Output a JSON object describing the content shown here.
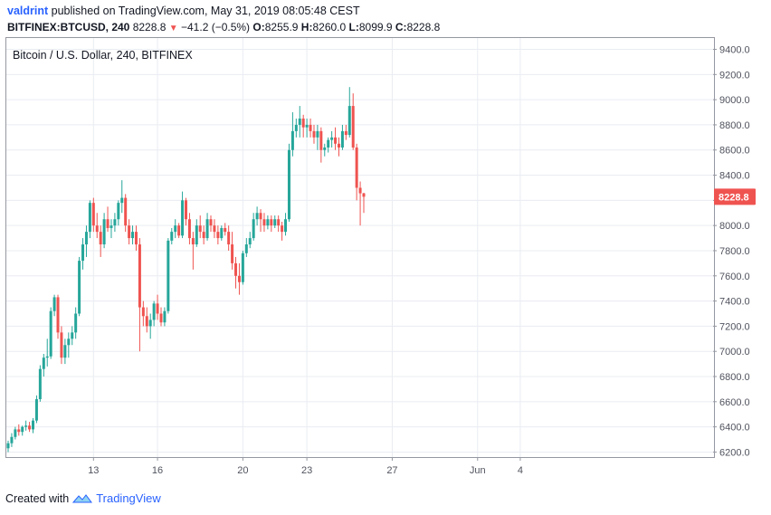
{
  "header": {
    "author": "valdrint",
    "published_text": "published on TradingView.com, May 31, 2019 08:05:48 CEST",
    "symbol": "BITFINEX:BTCUSD, 240",
    "last": "8228.8",
    "change": "−41.2 (−0.5%)",
    "o_label": "O:",
    "o_value": "8255.9",
    "h_label": "H:",
    "h_value": "8260.0",
    "l_label": "L:",
    "l_value": "8099.9",
    "c_label": "C:",
    "c_value": "8228.8"
  },
  "footer": {
    "created_with": "Created with",
    "brand": "TradingView"
  },
  "colors": {
    "up": "#26a69a",
    "down": "#ef5350",
    "grid": "#e9ecf2",
    "axis_text": "#50535e"
  },
  "chart_data": {
    "type": "candlestick",
    "title": "Bitcoin / U.S. Dollar, 240, BITFINEX",
    "ylim": [
      6160,
      9490
    ],
    "y_ticks": [
      6200,
      6400,
      6600,
      6800,
      7000,
      7200,
      7400,
      7600,
      7800,
      8000,
      8200,
      8400,
      8600,
      8800,
      9000,
      9200,
      9400
    ],
    "y_tick_labels": [
      "6200.0",
      "6400.0",
      "6600.0",
      "6800.0",
      "7000.0",
      "7200.0",
      "7400.0",
      "7600.0",
      "7800.0",
      "8000.0",
      "8200.0",
      "8400.0",
      "8600.0",
      "8800.0",
      "9000.0",
      "9200.0",
      "9400.0"
    ],
    "x_ticks": [
      {
        "label": "13",
        "index": 24
      },
      {
        "label": "16",
        "index": 42
      },
      {
        "label": "20",
        "index": 66
      },
      {
        "label": "23",
        "index": 84
      },
      {
        "label": "27",
        "index": 108
      },
      {
        "label": "Jun",
        "index": 132
      },
      {
        "label": "4",
        "index": 144
      }
    ],
    "last_price": 8228.8,
    "last_price_label": "8228.8",
    "candles": [
      [
        6230,
        6290,
        6200,
        6270
      ],
      [
        6270,
        6350,
        6240,
        6320
      ],
      [
        6320,
        6400,
        6300,
        6380
      ],
      [
        6380,
        6420,
        6330,
        6360
      ],
      [
        6360,
        6410,
        6330,
        6400
      ],
      [
        6400,
        6450,
        6370,
        6410
      ],
      [
        6410,
        6440,
        6360,
        6380
      ],
      [
        6380,
        6470,
        6350,
        6450
      ],
      [
        6450,
        6650,
        6430,
        6620
      ],
      [
        6620,
        6890,
        6600,
        6860
      ],
      [
        6860,
        6980,
        6800,
        6950
      ],
      [
        6950,
        7100,
        6880,
        6960
      ],
      [
        6960,
        7350,
        6940,
        7320
      ],
      [
        7320,
        7450,
        7280,
        7430
      ],
      [
        7430,
        7450,
        7100,
        7150
      ],
      [
        7150,
        7200,
        6900,
        6950
      ],
      [
        6950,
        7100,
        6900,
        7050
      ],
      [
        7050,
        7150,
        6950,
        7100
      ],
      [
        7100,
        7200,
        7050,
        7150
      ],
      [
        7150,
        7350,
        7100,
        7300
      ],
      [
        7300,
        7750,
        7280,
        7720
      ],
      [
        7720,
        7900,
        7650,
        7850
      ],
      [
        7850,
        8000,
        7750,
        7950
      ],
      [
        7950,
        8200,
        7900,
        8180
      ],
      [
        8180,
        8220,
        7950,
        8000
      ],
      [
        8000,
        8100,
        7900,
        7950
      ],
      [
        7950,
        8000,
        7750,
        7850
      ],
      [
        7850,
        8100,
        7820,
        8050
      ],
      [
        8050,
        8150,
        7950,
        7980
      ],
      [
        7980,
        8050,
        7900,
        8000
      ],
      [
        8000,
        8100,
        7950,
        8050
      ],
      [
        8050,
        8200,
        8000,
        8180
      ],
      [
        8180,
        8360,
        8100,
        8220
      ],
      [
        8220,
        8250,
        7950,
        8000
      ],
      [
        8000,
        8050,
        7850,
        7900
      ],
      [
        7900,
        8000,
        7850,
        7950
      ],
      [
        7950,
        8000,
        7800,
        7850
      ],
      [
        7850,
        7900,
        7000,
        7350
      ],
      [
        7350,
        7400,
        7200,
        7280
      ],
      [
        7280,
        7350,
        7150,
        7200
      ],
      [
        7200,
        7300,
        7100,
        7250
      ],
      [
        7250,
        7400,
        7200,
        7380
      ],
      [
        7380,
        7450,
        7250,
        7300
      ],
      [
        7300,
        7350,
        7200,
        7230
      ],
      [
        7230,
        7350,
        7200,
        7320
      ],
      [
        7320,
        7900,
        7300,
        7880
      ],
      [
        7880,
        7980,
        7850,
        7950
      ],
      [
        7950,
        8050,
        7900,
        8000
      ],
      [
        8000,
        8020,
        7900,
        7920
      ],
      [
        7920,
        8270,
        7900,
        8200
      ],
      [
        8200,
        8220,
        8000,
        8050
      ],
      [
        8050,
        8100,
        7850,
        7900
      ],
      [
        7900,
        7950,
        7650,
        7850
      ],
      [
        7850,
        8050,
        7830,
        8000
      ],
      [
        8000,
        8080,
        7900,
        7950
      ],
      [
        7950,
        8000,
        7850,
        7900
      ],
      [
        7900,
        8100,
        7880,
        8050
      ],
      [
        8050,
        8080,
        7950,
        8000
      ],
      [
        8000,
        8050,
        7900,
        7950
      ],
      [
        7950,
        8000,
        7850,
        7900
      ],
      [
        7900,
        8000,
        7880,
        7980
      ],
      [
        7980,
        8020,
        7920,
        7950
      ],
      [
        7950,
        8000,
        7800,
        7850
      ],
      [
        7850,
        7950,
        7650,
        7700
      ],
      [
        7700,
        7750,
        7500,
        7600
      ],
      [
        7600,
        7700,
        7450,
        7550
      ],
      [
        7550,
        7800,
        7530,
        7780
      ],
      [
        7780,
        7900,
        7750,
        7850
      ],
      [
        7850,
        7950,
        7820,
        7900
      ],
      [
        7900,
        8100,
        7880,
        8050
      ],
      [
        8050,
        8150,
        8000,
        8100
      ],
      [
        8100,
        8130,
        7950,
        8050
      ],
      [
        8050,
        8100,
        7950,
        8000
      ],
      [
        8000,
        8080,
        7970,
        8050
      ],
      [
        8050,
        8080,
        7950,
        8000
      ],
      [
        8000,
        8080,
        7980,
        8050
      ],
      [
        8050,
        8080,
        7950,
        8000
      ],
      [
        8000,
        8030,
        7880,
        7950
      ],
      [
        7950,
        8100,
        7920,
        8050
      ],
      [
        8050,
        8650,
        8030,
        8600
      ],
      [
        8600,
        8900,
        8550,
        8750
      ],
      [
        8750,
        8850,
        8700,
        8800
      ],
      [
        8800,
        8950,
        8700,
        8850
      ],
      [
        8850,
        8880,
        8700,
        8780
      ],
      [
        8780,
        8850,
        8700,
        8800
      ],
      [
        8800,
        8850,
        8700,
        8750
      ],
      [
        8750,
        8800,
        8650,
        8700
      ],
      [
        8700,
        8800,
        8600,
        8750
      ],
      [
        8750,
        8780,
        8500,
        8600
      ],
      [
        8600,
        8650,
        8550,
        8620
      ],
      [
        8620,
        8700,
        8580,
        8680
      ],
      [
        8680,
        8750,
        8620,
        8700
      ],
      [
        8700,
        8780,
        8600,
        8650
      ],
      [
        8650,
        8700,
        8550,
        8620
      ],
      [
        8620,
        8800,
        8600,
        8750
      ],
      [
        8750,
        8800,
        8680,
        8720
      ],
      [
        8720,
        9100,
        8700,
        8950
      ],
      [
        8950,
        9050,
        8600,
        8620
      ],
      [
        8620,
        8650,
        8200,
        8300
      ],
      [
        8300,
        8350,
        8000,
        8255.9
      ],
      [
        8255.9,
        8260,
        8099.9,
        8228.8
      ]
    ]
  }
}
